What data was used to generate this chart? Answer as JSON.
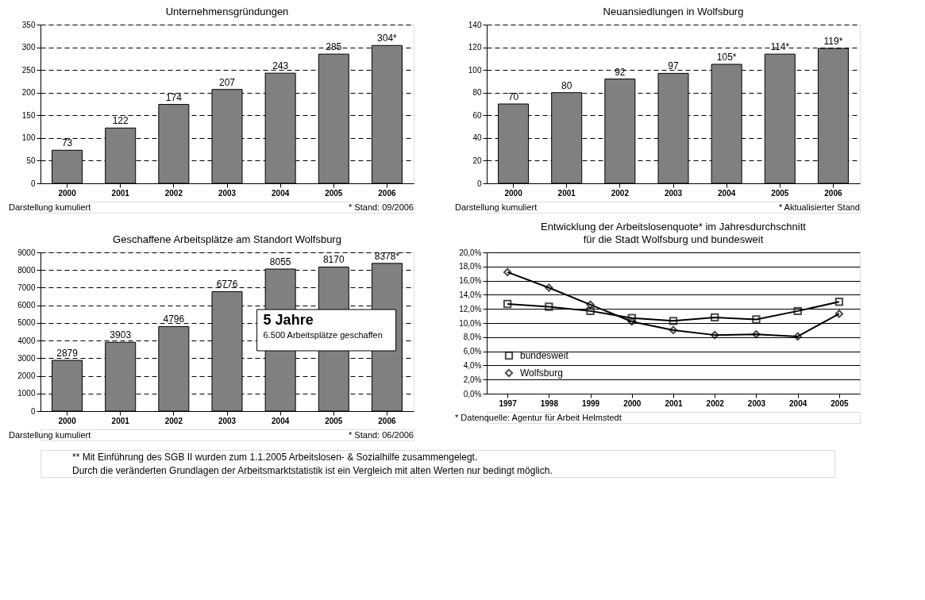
{
  "chart_data": [
    {
      "type": "bar",
      "title": "Unternehmensgründungen",
      "categories": [
        "2000",
        "2001",
        "2002",
        "2003",
        "2004",
        "2005",
        "2006"
      ],
      "values": [
        73,
        122,
        174,
        207,
        243,
        285,
        304
      ],
      "value_labels": [
        "73",
        "122",
        "174",
        "207",
        "243",
        "285",
        "304*"
      ],
      "color": "#808080",
      "ylim": [
        0,
        350
      ],
      "yticks": [
        0,
        50,
        100,
        150,
        200,
        250,
        300,
        350
      ],
      "grid": "y",
      "annotations": [
        "Darstellung kumuliert",
        "* Stand: 09/2006"
      ]
    },
    {
      "type": "bar",
      "title": "Neuansiedlungen in Wolfsburg",
      "categories": [
        "2000",
        "2001",
        "2002",
        "2003",
        "2004",
        "2005",
        "2006"
      ],
      "values": [
        70,
        80,
        92,
        97,
        105,
        114,
        119
      ],
      "value_labels": [
        "70",
        "80",
        "92",
        "97",
        "105*",
        "114*",
        "119*"
      ],
      "color": "#808080",
      "ylim": [
        0,
        140
      ],
      "yticks": [
        0,
        20,
        40,
        60,
        80,
        100,
        120,
        140
      ],
      "grid": "y",
      "annotations": [
        "Darstellung kumuliert",
        "* Aktualisierter Stand"
      ]
    },
    {
      "type": "bar",
      "title": "Geschaffene Arbeitsplätze am Standort Wolfsburg",
      "categories": [
        "2000",
        "2001",
        "2002",
        "2003",
        "2004",
        "2005",
        "2006"
      ],
      "values": [
        2879,
        3903,
        4796,
        6776,
        8055,
        8170,
        8378
      ],
      "value_labels": [
        "2879",
        "3903",
        "4796",
        "6776",
        "8055",
        "8170",
        "8378*"
      ],
      "color": "#808080",
      "ylim": [
        0,
        9000
      ],
      "yticks": [
        0,
        1000,
        2000,
        3000,
        4000,
        5000,
        6000,
        7000,
        8000,
        9000
      ],
      "grid": "y",
      "annotations": [
        "Darstellung kumuliert",
        "* Stand: 06/2006",
        "5 Jahre",
        "6.500 Arbeitsplätze geschaffen"
      ]
    },
    {
      "type": "line",
      "title": "Entwicklung der Arbeitslosenquote* im Jahresdurchschnitt",
      "subtitle": "für die Stadt Wolfsburg und bundesweit",
      "categories": [
        "1997",
        "1998",
        "1999",
        "2000",
        "2001",
        "2002",
        "2003",
        "2004",
        "2005"
      ],
      "series": [
        {
          "name": "bundesweit",
          "color": "#000000",
          "marker": "square",
          "values": [
            12.7,
            12.3,
            11.7,
            10.7,
            10.3,
            10.8,
            10.5,
            11.7,
            13.0
          ]
        },
        {
          "name": "Wolfsburg",
          "color": "#000000",
          "marker": "diamond",
          "values": [
            17.2,
            15.0,
            12.6,
            10.2,
            9.0,
            8.3,
            8.4,
            8.1,
            11.3
          ]
        }
      ],
      "ylim": [
        0,
        20
      ],
      "yticks": [
        {
          "value": 0,
          "label": "0,0%"
        },
        {
          "value": 2,
          "label": "2,0%"
        },
        {
          "value": 4,
          "label": "4,0%"
        },
        {
          "value": 6,
          "label": "6,0%"
        },
        {
          "value": 8,
          "label": "8,0%"
        },
        {
          "value": 10,
          "label": "10,0%"
        },
        {
          "value": 12,
          "label": "12,0%"
        },
        {
          "value": 14,
          "label": "14,0%"
        },
        {
          "value": 16,
          "label": "16,0%"
        },
        {
          "value": 18,
          "label": "18,0%"
        },
        {
          "value": 20,
          "label": "20,0%"
        }
      ],
      "grid": "y",
      "legend": "bottom left",
      "line_style": "solid",
      "annotations": [
        "* Datenquelle: Agentur für Arbeit Helmstedt",
        "** Mit Einführung des SGB II wurden zum 1.1.2005 Arbeitslosen- & Sozialhilfe zusammengelegt.",
        "Durch die veränderten Grundlagen der Arbeitsmarktstatistik ist ein Vergleich mit alten Werten nur bedingt möglich."
      ]
    }
  ]
}
